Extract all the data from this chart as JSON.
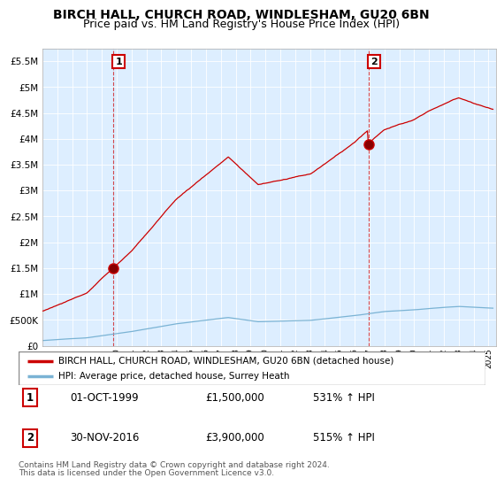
{
  "title": "BIRCH HALL, CHURCH ROAD, WINDLESHAM, GU20 6BN",
  "subtitle": "Price paid vs. HM Land Registry's House Price Index (HPI)",
  "title_fontsize": 10,
  "subtitle_fontsize": 9,
  "sale1_year": 1999.75,
  "sale1_price": 1500000,
  "sale1_label": "1",
  "sale1_date": "01-OCT-1999",
  "sale1_price_str": "£1,500,000",
  "sale1_pct": "531% ↑ HPI",
  "sale2_year": 2016.92,
  "sale2_price": 3900000,
  "sale2_label": "2",
  "sale2_date": "30-NOV-2016",
  "sale2_price_str": "£3,900,000",
  "sale2_pct": "515% ↑ HPI",
  "hpi_color": "#7ab3d4",
  "house_color": "#cc0000",
  "dashed_color": "#cc0000",
  "chart_bg_color": "#ddeeff",
  "ylim_min": 0,
  "ylim_max": 5750000,
  "xlim_min": 1995.0,
  "xlim_max": 2025.5,
  "footnote1": "Contains HM Land Registry data © Crown copyright and database right 2024.",
  "footnote2": "This data is licensed under the Open Government Licence v3.0.",
  "legend_house": "BIRCH HALL, CHURCH ROAD, WINDLESHAM, GU20 6BN (detached house)",
  "legend_hpi": "HPI: Average price, detached house, Surrey Heath",
  "ytick_labels": [
    "£0",
    "£500K",
    "£1M",
    "£1.5M",
    "£2M",
    "£2.5M",
    "£3M",
    "£3.5M",
    "£4M",
    "£4.5M",
    "£5M",
    "£5.5M"
  ],
  "ytick_values": [
    0,
    500000,
    1000000,
    1500000,
    2000000,
    2500000,
    3000000,
    3500000,
    4000000,
    4500000,
    5000000,
    5500000
  ],
  "xtick_years": [
    1995,
    1996,
    1997,
    1998,
    1999,
    2000,
    2001,
    2002,
    2003,
    2004,
    2005,
    2006,
    2007,
    2008,
    2009,
    2010,
    2011,
    2012,
    2013,
    2014,
    2015,
    2016,
    2017,
    2018,
    2019,
    2020,
    2021,
    2022,
    2023,
    2024,
    2025
  ]
}
